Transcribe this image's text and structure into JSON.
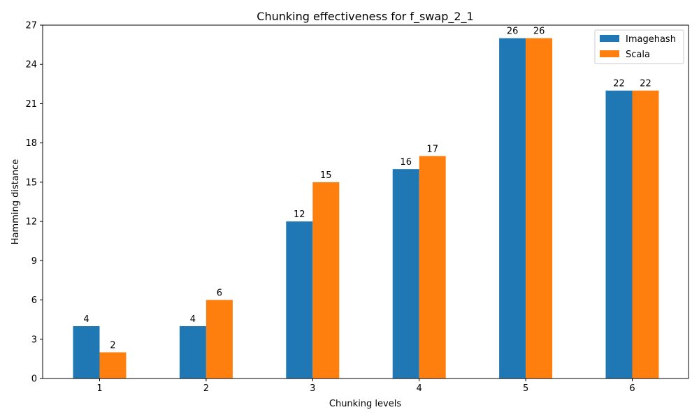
{
  "chart_data": {
    "type": "bar",
    "title": "Chunking effectiveness for  f_swap_2_1",
    "xlabel": "Chunking levels",
    "ylabel": "Hamming distance",
    "categories": [
      "1",
      "2",
      "3",
      "4",
      "5",
      "6"
    ],
    "series": [
      {
        "name": "Imagehash",
        "values": [
          4,
          4,
          12,
          16,
          26,
          22
        ],
        "color": "#1f77b4"
      },
      {
        "name": "Scala",
        "values": [
          2,
          6,
          15,
          17,
          26,
          22
        ],
        "color": "#ff7f0e"
      }
    ],
    "ylim": [
      0,
      27
    ],
    "yticks": [
      0,
      3,
      6,
      9,
      12,
      15,
      18,
      21,
      24,
      27
    ],
    "grid": false,
    "legend_position": "top-right",
    "show_data_labels": true
  }
}
